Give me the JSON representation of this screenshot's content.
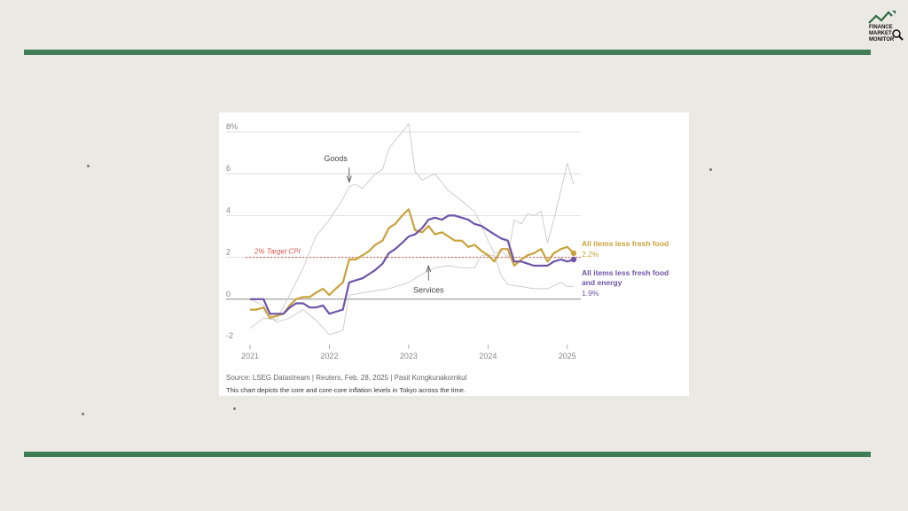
{
  "logo": {
    "text_lines": [
      "FINANCE",
      "MARKET",
      "MONITOR"
    ]
  },
  "colors": {
    "background": "#ebe9e4",
    "rule": "#3f7d55",
    "core": "#c9a23a",
    "core_core": "#6d54a8",
    "goods_services": "#c9c9c9",
    "target": "#d9534f"
  },
  "chart_data": {
    "type": "line",
    "y_ticks": [
      "8%",
      "6",
      "4",
      "2",
      "0",
      "-2"
    ],
    "x_ticks": [
      "2021",
      "2022",
      "2023",
      "2024",
      "2025"
    ],
    "ylim": [
      -2,
      8
    ],
    "grid": true,
    "target": {
      "value": 2,
      "label": "2% Target CPI"
    },
    "annotations": {
      "goods": "Goods",
      "services": "Services"
    },
    "series": [
      {
        "name": "All items less fresh food",
        "end_label": "2.2%",
        "values": [
          [
            2021.0,
            -0.5
          ],
          [
            2021.08,
            -0.5
          ],
          [
            2021.17,
            -0.4
          ],
          [
            2021.25,
            -0.9
          ],
          [
            2021.33,
            -0.8
          ],
          [
            2021.42,
            -0.7
          ],
          [
            2021.5,
            -0.3
          ],
          [
            2021.58,
            0.0
          ],
          [
            2021.67,
            0.1
          ],
          [
            2021.75,
            0.1
          ],
          [
            2021.83,
            0.3
          ],
          [
            2021.92,
            0.5
          ],
          [
            2022.0,
            0.2
          ],
          [
            2022.08,
            0.5
          ],
          [
            2022.17,
            0.8
          ],
          [
            2022.25,
            1.9
          ],
          [
            2022.33,
            1.9
          ],
          [
            2022.42,
            2.1
          ],
          [
            2022.5,
            2.3
          ],
          [
            2022.58,
            2.6
          ],
          [
            2022.67,
            2.8
          ],
          [
            2022.75,
            3.4
          ],
          [
            2022.83,
            3.6
          ],
          [
            2022.92,
            4.0
          ],
          [
            2023.0,
            4.3
          ],
          [
            2023.08,
            3.3
          ],
          [
            2023.17,
            3.2
          ],
          [
            2023.25,
            3.5
          ],
          [
            2023.33,
            3.1
          ],
          [
            2023.42,
            3.2
          ],
          [
            2023.5,
            3.0
          ],
          [
            2023.58,
            2.8
          ],
          [
            2023.67,
            2.8
          ],
          [
            2023.75,
            2.5
          ],
          [
            2023.83,
            2.6
          ],
          [
            2023.92,
            2.3
          ],
          [
            2024.0,
            2.1
          ],
          [
            2024.08,
            1.8
          ],
          [
            2024.17,
            2.4
          ],
          [
            2024.25,
            2.4
          ],
          [
            2024.33,
            1.6
          ],
          [
            2024.42,
            1.9
          ],
          [
            2024.5,
            2.1
          ],
          [
            2024.58,
            2.2
          ],
          [
            2024.67,
            2.4
          ],
          [
            2024.75,
            1.8
          ],
          [
            2024.83,
            2.2
          ],
          [
            2024.92,
            2.4
          ],
          [
            2025.0,
            2.5
          ],
          [
            2025.08,
            2.2
          ]
        ]
      },
      {
        "name": "All items less fresh food and energy",
        "end_label": "1.9%",
        "values": [
          [
            2021.0,
            0.0
          ],
          [
            2021.08,
            0.0
          ],
          [
            2021.17,
            0.0
          ],
          [
            2021.25,
            -0.7
          ],
          [
            2021.33,
            -0.7
          ],
          [
            2021.42,
            -0.7
          ],
          [
            2021.5,
            -0.4
          ],
          [
            2021.58,
            -0.2
          ],
          [
            2021.67,
            -0.2
          ],
          [
            2021.75,
            -0.4
          ],
          [
            2021.83,
            -0.4
          ],
          [
            2021.92,
            -0.3
          ],
          [
            2022.0,
            -0.7
          ],
          [
            2022.08,
            -0.6
          ],
          [
            2022.17,
            -0.5
          ],
          [
            2022.25,
            0.8
          ],
          [
            2022.33,
            0.9
          ],
          [
            2022.42,
            1.0
          ],
          [
            2022.5,
            1.2
          ],
          [
            2022.58,
            1.4
          ],
          [
            2022.67,
            1.7
          ],
          [
            2022.75,
            2.2
          ],
          [
            2022.83,
            2.4
          ],
          [
            2022.92,
            2.7
          ],
          [
            2023.0,
            3.0
          ],
          [
            2023.08,
            3.1
          ],
          [
            2023.17,
            3.4
          ],
          [
            2023.25,
            3.8
          ],
          [
            2023.33,
            3.9
          ],
          [
            2023.42,
            3.8
          ],
          [
            2023.5,
            4.0
          ],
          [
            2023.58,
            4.0
          ],
          [
            2023.67,
            3.9
          ],
          [
            2023.75,
            3.8
          ],
          [
            2023.83,
            3.6
          ],
          [
            2023.92,
            3.5
          ],
          [
            2024.0,
            3.3
          ],
          [
            2024.08,
            3.1
          ],
          [
            2024.17,
            2.9
          ],
          [
            2024.25,
            2.8
          ],
          [
            2024.33,
            1.8
          ],
          [
            2024.42,
            1.8
          ],
          [
            2024.5,
            1.7
          ],
          [
            2024.58,
            1.6
          ],
          [
            2024.67,
            1.6
          ],
          [
            2024.75,
            1.6
          ],
          [
            2024.83,
            1.8
          ],
          [
            2024.92,
            1.9
          ],
          [
            2025.0,
            1.8
          ],
          [
            2025.08,
            1.9
          ]
        ]
      },
      {
        "name": "Goods",
        "values": [
          [
            2021.0,
            -1.4
          ],
          [
            2021.17,
            -0.9
          ],
          [
            2021.33,
            -1.0
          ],
          [
            2021.5,
            0.2
          ],
          [
            2021.67,
            1.5
          ],
          [
            2021.83,
            3.0
          ],
          [
            2022.0,
            3.8
          ],
          [
            2022.17,
            4.8
          ],
          [
            2022.25,
            5.4
          ],
          [
            2022.33,
            5.5
          ],
          [
            2022.42,
            5.3
          ],
          [
            2022.58,
            6.0
          ],
          [
            2022.67,
            6.2
          ],
          [
            2022.75,
            7.2
          ],
          [
            2022.83,
            7.6
          ],
          [
            2022.92,
            8.0
          ],
          [
            2023.0,
            8.4
          ],
          [
            2023.08,
            6.1
          ],
          [
            2023.17,
            5.7
          ],
          [
            2023.33,
            6.0
          ],
          [
            2023.5,
            5.2
          ],
          [
            2023.67,
            4.7
          ],
          [
            2023.83,
            4.2
          ],
          [
            2023.92,
            3.5
          ],
          [
            2024.0,
            2.8
          ],
          [
            2024.08,
            2.2
          ],
          [
            2024.17,
            2.3
          ],
          [
            2024.25,
            2.0
          ],
          [
            2024.33,
            3.8
          ],
          [
            2024.42,
            3.6
          ],
          [
            2024.5,
            4.1
          ],
          [
            2024.58,
            4.0
          ],
          [
            2024.67,
            4.2
          ],
          [
            2024.75,
            2.7
          ],
          [
            2024.83,
            3.8
          ],
          [
            2024.92,
            5.2
          ],
          [
            2025.0,
            6.5
          ],
          [
            2025.08,
            5.5
          ]
        ]
      },
      {
        "name": "Services",
        "values": [
          [
            2021.0,
            0.0
          ],
          [
            2021.17,
            -0.3
          ],
          [
            2021.33,
            -1.1
          ],
          [
            2021.5,
            -0.9
          ],
          [
            2021.67,
            -0.5
          ],
          [
            2021.83,
            -1.0
          ],
          [
            2022.0,
            -1.7
          ],
          [
            2022.17,
            -1.5
          ],
          [
            2022.25,
            0.2
          ],
          [
            2022.42,
            0.3
          ],
          [
            2022.58,
            0.4
          ],
          [
            2022.75,
            0.5
          ],
          [
            2022.92,
            0.7
          ],
          [
            2023.0,
            0.8
          ],
          [
            2023.17,
            1.2
          ],
          [
            2023.33,
            1.5
          ],
          [
            2023.5,
            1.6
          ],
          [
            2023.67,
            1.5
          ],
          [
            2023.83,
            1.5
          ],
          [
            2023.92,
            2.1
          ],
          [
            2024.0,
            2.1
          ],
          [
            2024.08,
            2.1
          ],
          [
            2024.17,
            1.1
          ],
          [
            2024.25,
            0.7
          ],
          [
            2024.42,
            0.6
          ],
          [
            2024.58,
            0.5
          ],
          [
            2024.75,
            0.5
          ],
          [
            2024.92,
            0.8
          ],
          [
            2025.0,
            0.6
          ],
          [
            2025.08,
            0.6
          ]
        ]
      }
    ]
  },
  "footer": {
    "source": "Source: LSEG Datastream | Reuters, Feb. 28, 2025 | Pasit Kongkunakornkul",
    "description": "This chart depicts the core and core-core inflation levels in Tokyo across the time."
  }
}
